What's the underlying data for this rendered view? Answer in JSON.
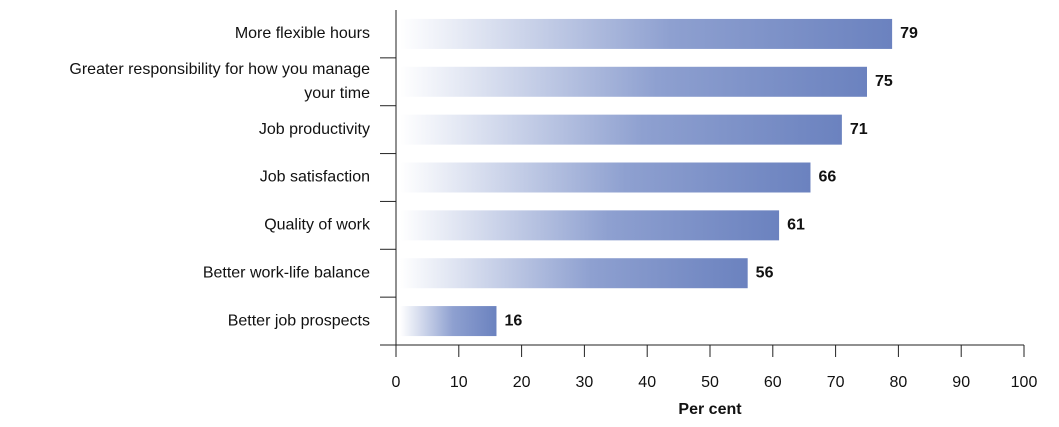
{
  "chart_data": {
    "type": "barh",
    "categories": [
      "More flexible hours",
      "Greater responsibility for how you manage your time",
      "Job productivity",
      "Job satisfaction",
      "Quality of work",
      "Better work-life balance",
      "Better job prospects"
    ],
    "values": [
      79,
      75,
      71,
      66,
      61,
      56,
      16
    ],
    "color": "#6b82bf",
    "xlabel": "Per cent",
    "xlim": [
      0,
      100
    ],
    "xticks": [
      0,
      10,
      20,
      30,
      40,
      50,
      60,
      70,
      80,
      90,
      100
    ]
  }
}
